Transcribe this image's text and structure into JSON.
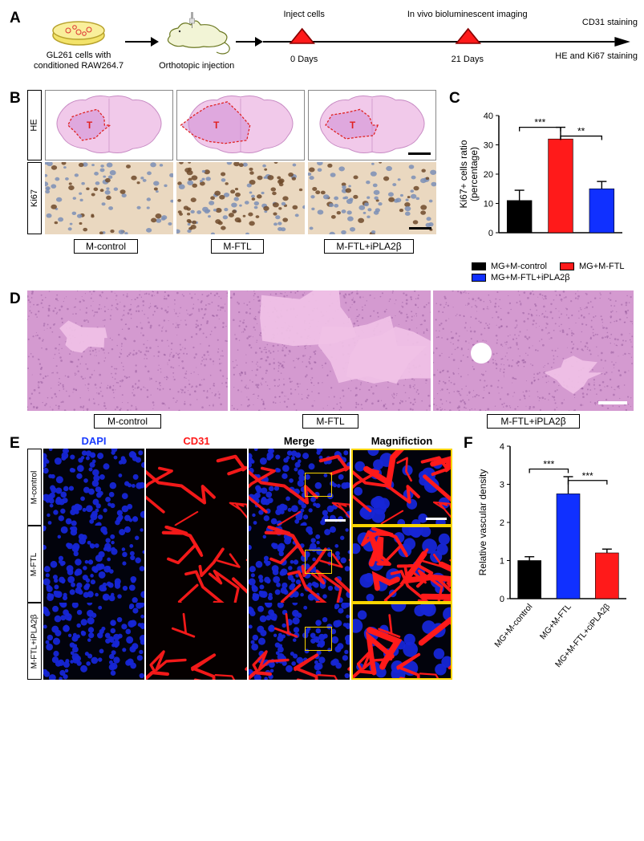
{
  "panelA": {
    "letter": "A",
    "dish_label": "GL261 cells with\nconditioned RAW264.7",
    "mouse_label": "Orthotopic injection",
    "timeline": {
      "inject_label": "Inject cells",
      "inject_sub": "0 Days",
      "imaging_label": "In vivo bioluminescent imaging",
      "imaging_sub": "21 Days",
      "right_top": "CD31 staining",
      "right_bottom": "HE and Ki67 staining"
    },
    "colors": {
      "dish_yellow": "#f3e36a",
      "dish_rim": "#b8a22d",
      "mouse_body": "#f2f4d6",
      "mouse_outline": "#6a7720",
      "marker_fill": "#ff1a1a",
      "marker_stroke": "#880000",
      "timeline_stroke": "#000000"
    }
  },
  "panelB": {
    "letter": "B",
    "row_labels": [
      "HE",
      "Ki67"
    ],
    "column_labels": [
      "M-control",
      "M-FTL",
      "M-FTL+iPLA2β"
    ],
    "brain": {
      "fill": "#f1c9ea",
      "tumor_line": "#e02020",
      "tumor_label": "T",
      "tumor_fill": "#d08cd4"
    },
    "ki67": {
      "bg": "#ead8c0",
      "nucleus_brown": "#6e4a2a",
      "nucleus_blue": "#7b8fb6"
    },
    "tumor_rel_area": [
      0.1,
      0.3,
      0.16
    ],
    "ki67_density": [
      0.25,
      0.55,
      0.3
    ]
  },
  "panelC": {
    "letter": "C",
    "type": "bar",
    "ylabel": "Ki67+ cells ratio\n(percentage)",
    "ylim": [
      0,
      40
    ],
    "ytick_step": 10,
    "categories": [
      "MG+M-control",
      "MG+M-FTL",
      "MG+M-FTL+iPLA2β"
    ],
    "values": [
      11,
      32,
      15
    ],
    "errors": [
      3.5,
      4,
      2.5
    ],
    "bar_colors": [
      "#000000",
      "#ff1a1a",
      "#1030ff"
    ],
    "sig": [
      {
        "from": 0,
        "to": 1,
        "label": "***",
        "y": 36
      },
      {
        "from": 1,
        "to": 2,
        "label": "**",
        "y": 33
      }
    ],
    "label_fontsize": 12,
    "bar_width": 0.6
  },
  "panelD": {
    "letter": "D",
    "column_labels": [
      "M-control",
      "M-FTL",
      "M-FTL+iPLA2β"
    ],
    "bg": "#d49ad0",
    "necrosis_color": "#f0c1e6",
    "necrosis_area": [
      0.05,
      0.4,
      0.12
    ]
  },
  "panelE": {
    "letter": "E",
    "headers": [
      "DAPI",
      "CD31",
      "Merge",
      "Magnifiction"
    ],
    "header_colors": [
      "#1a3cff",
      "#ff1a1a",
      "#000000",
      "#000000"
    ],
    "row_labels": [
      "M-control",
      "M-FTL",
      "M-FTL+iPLA2β"
    ],
    "dapi_blue": "#1626d6",
    "cd31_red": "#ff1a1a",
    "zoom_border": "#f8d400",
    "cd31_density": [
      0.3,
      0.8,
      0.35
    ]
  },
  "panelF": {
    "letter": "F",
    "type": "bar",
    "ylabel": "Relative vascular density",
    "ylim": [
      0,
      4
    ],
    "ytick_step": 1,
    "categories": [
      "MG+M-control",
      "MG+M-FTL",
      "MG+M-FTL+ciPLA2β"
    ],
    "values": [
      1.0,
      2.75,
      1.2
    ],
    "errors": [
      0.1,
      0.45,
      0.1
    ],
    "bar_colors": [
      "#000000",
      "#1030ff",
      "#ff1a1a"
    ],
    "sig": [
      {
        "from": 0,
        "to": 1,
        "label": "***",
        "y": 3.4
      },
      {
        "from": 1,
        "to": 2,
        "label": "***",
        "y": 3.1
      }
    ]
  }
}
